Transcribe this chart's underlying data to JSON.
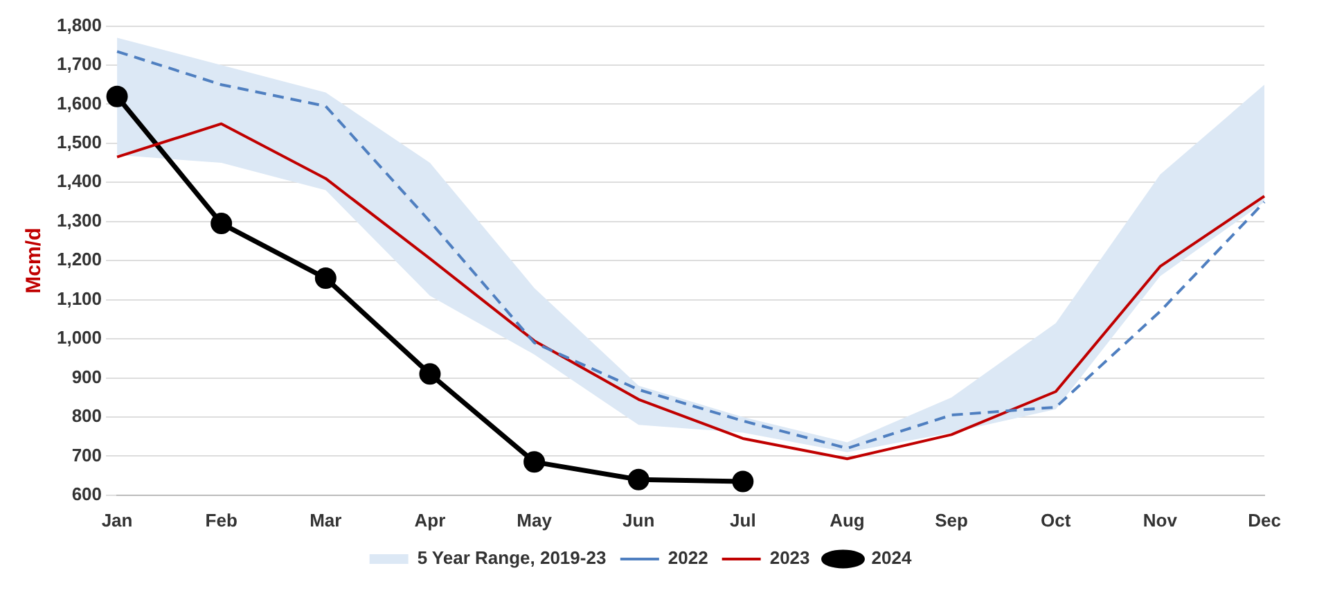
{
  "chart_data": {
    "type": "line",
    "ylabel": "Mcm/d",
    "categories": [
      "Jan",
      "Feb",
      "Mar",
      "Apr",
      "May",
      "Jun",
      "Jul",
      "Aug",
      "Sep",
      "Oct",
      "Nov",
      "Dec"
    ],
    "ylim": [
      600,
      1800
    ],
    "yticks": [
      {
        "value": 600,
        "label": "600"
      },
      {
        "value": 700,
        "label": "700"
      },
      {
        "value": 800,
        "label": "800"
      },
      {
        "value": 900,
        "label": "900"
      },
      {
        "value": 1000,
        "label": "1,000"
      },
      {
        "value": 1100,
        "label": "1,100"
      },
      {
        "value": 1200,
        "label": "1,200"
      },
      {
        "value": 1300,
        "label": "1,300"
      },
      {
        "value": 1400,
        "label": "1,400"
      },
      {
        "value": 1500,
        "label": "1,500"
      },
      {
        "value": 1600,
        "label": "1,600"
      },
      {
        "value": 1700,
        "label": "1,700"
      },
      {
        "value": 1800,
        "label": "1,800"
      }
    ],
    "grid": "y",
    "legend": "bottom",
    "series": [
      {
        "name": "5 Year Range, 2019-23",
        "type": "area",
        "color": "#dce8f5",
        "lower": [
          1470,
          1450,
          1380,
          1110,
          960,
          780,
          760,
          710,
          760,
          820,
          1160,
          1350
        ],
        "upper": [
          1770,
          1700,
          1630,
          1450,
          1130,
          880,
          800,
          735,
          850,
          1040,
          1420,
          1650
        ],
        "values": [
          null,
          null,
          null,
          null,
          null,
          null,
          null,
          null,
          null,
          null,
          null,
          null
        ]
      },
      {
        "name": "2022",
        "type": "line",
        "color": "#4f7fc0",
        "line_style": "dashed",
        "marker": "none",
        "values": [
          1735,
          1650,
          1595,
          1300,
          990,
          870,
          790,
          720,
          805,
          825,
          1070,
          1350
        ]
      },
      {
        "name": "2023",
        "type": "line",
        "color": "#c00000",
        "line_style": "solid",
        "marker": "none",
        "values": [
          1465,
          1550,
          1410,
          1205,
          995,
          845,
          745,
          693,
          755,
          865,
          1185,
          1365
        ]
      },
      {
        "name": "2024",
        "type": "line",
        "color": "#000000",
        "line_style": "solid",
        "marker": "circle",
        "values": [
          1620,
          1295,
          1155,
          910,
          685,
          640,
          635,
          null,
          null,
          null,
          null,
          null
        ]
      }
    ]
  }
}
